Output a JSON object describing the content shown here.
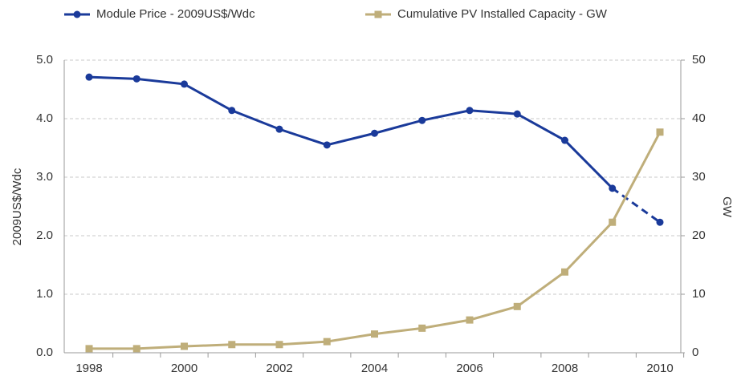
{
  "chart_data": {
    "type": "line",
    "categories": [
      "1998",
      null,
      "2000",
      null,
      "2002",
      null,
      "2004",
      null,
      "2006",
      null,
      "2008",
      null,
      "2010"
    ],
    "series": [
      {
        "name": "Module Price - 2009US$/Wdc",
        "color": "#1a3a9a",
        "marker": "circle",
        "dashed_after": 11,
        "values": [
          4.71,
          4.68,
          4.59,
          4.14,
          3.82,
          3.55,
          3.75,
          3.97,
          4.14,
          4.08,
          3.63,
          2.81,
          2.23
        ]
      },
      {
        "name": "Cumulative PV Installed Capacity - GW",
        "color": "#bfae7a",
        "marker": "square",
        "axis": "y2",
        "values": [
          0.7,
          0.7,
          1.1,
          1.4,
          1.4,
          1.9,
          3.2,
          4.2,
          5.6,
          7.9,
          13.8,
          22.3,
          37.7
        ]
      }
    ],
    "ylabel": "2009US$/Wdc",
    "y2label": "GW",
    "ylim": [
      0,
      5
    ],
    "yticks": [
      {
        "value": 0,
        "label": "0.0"
      },
      {
        "value": 1,
        "label": "1.0"
      },
      {
        "value": 2,
        "label": "2.0"
      },
      {
        "value": 3,
        "label": "3.0"
      },
      {
        "value": 4,
        "label": "4.0"
      },
      {
        "value": 5,
        "label": "5.0"
      }
    ],
    "y2lim": [
      0,
      50
    ],
    "y2ticks": [
      0,
      10,
      20,
      30,
      40,
      50
    ],
    "grid": true,
    "legend": "top"
  }
}
